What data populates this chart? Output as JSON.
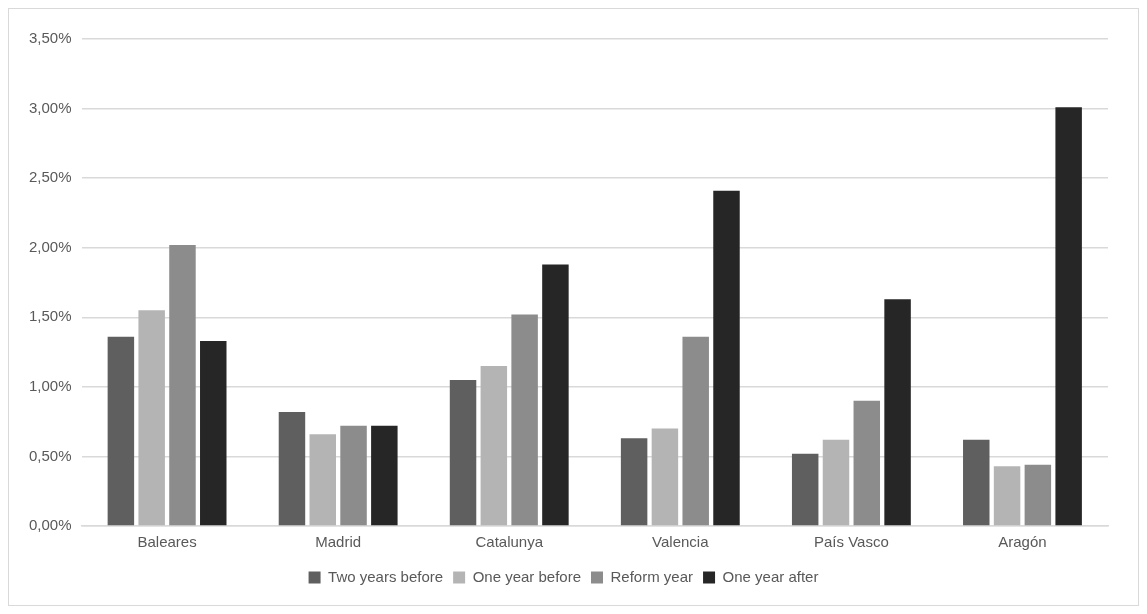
{
  "chart_data": {
    "type": "bar",
    "categories": [
      "Baleares",
      "Madrid",
      "Catalunya",
      "Valencia",
      "País Vasco",
      "Aragón"
    ],
    "series": [
      {
        "name": "Two years before",
        "color": "#5f5f5f",
        "values": [
          1.36,
          0.82,
          1.05,
          0.63,
          0.52,
          0.62
        ]
      },
      {
        "name": "One year before",
        "color": "#b4b4b4",
        "values": [
          1.55,
          0.66,
          1.15,
          0.7,
          0.62,
          0.43
        ]
      },
      {
        "name": "Reform year",
        "color": "#8c8c8c",
        "values": [
          2.02,
          0.72,
          1.52,
          1.36,
          0.9,
          0.44
        ]
      },
      {
        "name": "One year after",
        "color": "#262626",
        "values": [
          1.33,
          0.72,
          1.88,
          2.41,
          1.63,
          3.01
        ]
      }
    ],
    "ylim": [
      0,
      3.5
    ],
    "yticks": [
      {
        "value": 0,
        "label": "0,00%"
      },
      {
        "value": 0.5,
        "label": "0,50%"
      },
      {
        "value": 1,
        "label": "1,00%"
      },
      {
        "value": 1.5,
        "label": "1,50%"
      },
      {
        "value": 2,
        "label": "2,00%"
      },
      {
        "value": 2.5,
        "label": "2,50%"
      },
      {
        "value": 3,
        "label": "3,00%"
      },
      {
        "value": 3.5,
        "label": "3,50%"
      }
    ],
    "grid": "y",
    "legend": "bottom"
  }
}
